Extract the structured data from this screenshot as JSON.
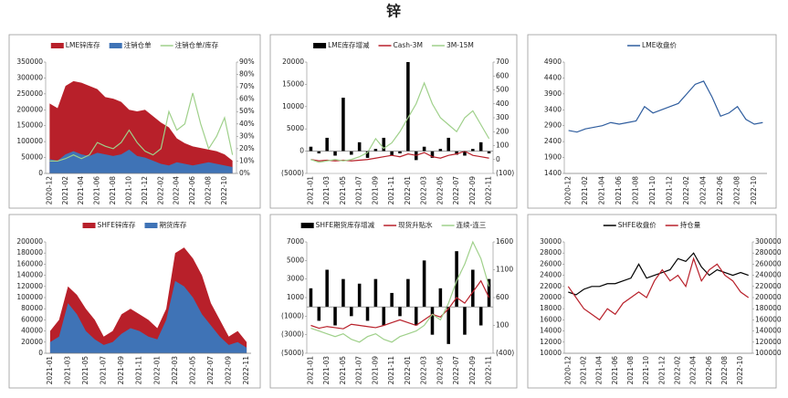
{
  "title": "锌",
  "chart_data": [
    {
      "type": "area",
      "categories": [
        "2020-12",
        null,
        "2021-02",
        null,
        "2021-04",
        null,
        "2021-06",
        null,
        "2021-08",
        null,
        "2021-10",
        null,
        "2021-12",
        null,
        "2022-02",
        null,
        "2022-04",
        null,
        "2022-06",
        null,
        "2022-08",
        null,
        "2022-10",
        null
      ],
      "ylim": [
        0,
        350000
      ],
      "yticks": [
        0,
        50000,
        100000,
        150000,
        200000,
        250000,
        300000,
        350000
      ],
      "y2lim": [
        0,
        90
      ],
      "y2ticks": [
        {
          "value": 0,
          "label": "0%"
        },
        {
          "value": 10,
          "label": "10%"
        },
        {
          "value": 20,
          "label": "20%"
        },
        {
          "value": 30,
          "label": "30%"
        },
        {
          "value": 40,
          "label": "40%"
        },
        {
          "value": 50,
          "label": "50%"
        },
        {
          "value": 60,
          "label": "60%"
        },
        {
          "value": 70,
          "label": "70%"
        },
        {
          "value": 80,
          "label": "80%"
        },
        {
          "value": 90,
          "label": "90%"
        }
      ],
      "series": [
        {
          "name": "LME锌库存",
          "type": "area",
          "color": "#b8202a",
          "values": [
            220000,
            205000,
            275000,
            290000,
            285000,
            275000,
            265000,
            240000,
            235000,
            225000,
            200000,
            195000,
            200000,
            180000,
            160000,
            145000,
            110000,
            95000,
            85000,
            80000,
            75000,
            70000,
            60000,
            40000
          ]
        },
        {
          "name": "注销仓单",
          "type": "area",
          "color": "#3f73b6",
          "values": [
            45000,
            40000,
            60000,
            70000,
            60000,
            55000,
            65000,
            60000,
            55000,
            60000,
            75000,
            55000,
            50000,
            40000,
            30000,
            25000,
            35000,
            30000,
            25000,
            30000,
            35000,
            30000,
            25000,
            20000
          ]
        },
        {
          "name": "注销仓单/库存",
          "type": "line",
          "axis": "y2",
          "color": "#9fd08a",
          "values": [
            10,
            10,
            12,
            15,
            12,
            15,
            25,
            22,
            20,
            25,
            35,
            25,
            18,
            15,
            20,
            50,
            35,
            40,
            65,
            40,
            20,
            30,
            45,
            15
          ]
        }
      ]
    },
    {
      "type": "bar",
      "categories": [
        "2021-01",
        null,
        "2021-03",
        null,
        "2021-05",
        null,
        "2021-07",
        null,
        "2021-09",
        null,
        "2021-11",
        null,
        "2022-01",
        null,
        "2022-03",
        null,
        "2022-05",
        null,
        "2022-07",
        null,
        "2022-09",
        null,
        "2022-11"
      ],
      "ylim": [
        -5000,
        20000
      ],
      "yticks": [
        {
          "value": -5000,
          "label": "(5000)"
        },
        0,
        5000,
        10000,
        15000,
        20000
      ],
      "y2lim": [
        -100,
        700
      ],
      "y2ticks": [
        {
          "value": -100,
          "label": "(100)"
        },
        0,
        100,
        200,
        300,
        400,
        500,
        600,
        700
      ],
      "series": [
        {
          "name": "LME库存增减",
          "type": "bar",
          "color": "#000000",
          "values": [
            1000,
            -500,
            3000,
            -1000,
            12000,
            -800,
            2000,
            -1500,
            500,
            3000,
            -1000,
            -500,
            20000,
            -2000,
            1000,
            -1500,
            500,
            3000,
            -800,
            -1000,
            500,
            2000,
            -500
          ]
        },
        {
          "name": "Cash-3M",
          "type": "line",
          "axis": "y2",
          "color": "#b8202a",
          "values": [
            0,
            -10,
            -5,
            -10,
            -5,
            -10,
            -5,
            0,
            10,
            20,
            30,
            20,
            40,
            30,
            50,
            20,
            10,
            30,
            40,
            60,
            30,
            20,
            10
          ]
        },
        {
          "name": "3M-15M",
          "type": "line",
          "axis": "y2",
          "color": "#9fd08a",
          "values": [
            0,
            -20,
            -10,
            0,
            -10,
            0,
            20,
            50,
            150,
            80,
            120,
            200,
            300,
            400,
            550,
            400,
            300,
            250,
            200,
            300,
            350,
            250,
            150
          ]
        }
      ]
    },
    {
      "type": "line",
      "categories": [
        "2020-12",
        null,
        "2021-02",
        null,
        "2021-04",
        null,
        "2021-06",
        null,
        "2021-08",
        null,
        "2021-10",
        null,
        "2021-12",
        null,
        "2022-02",
        null,
        "2022-04",
        null,
        "2022-06",
        null,
        "2022-08",
        null,
        "2022-10",
        null
      ],
      "ylim": [
        1400,
        4900
      ],
      "yticks": [
        1400,
        1900,
        2400,
        2900,
        3400,
        3900,
        4400,
        4900
      ],
      "series": [
        {
          "name": "LME收盘价",
          "type": "line",
          "color": "#2f5d9e",
          "values": [
            2750,
            2700,
            2800,
            2850,
            2900,
            3000,
            2950,
            3000,
            3050,
            3500,
            3300,
            3400,
            3500,
            3600,
            3900,
            4200,
            4300,
            3800,
            3200,
            3300,
            3500,
            3100,
            2950,
            3000
          ]
        }
      ]
    },
    {
      "type": "area",
      "categories": [
        "2021-01",
        null,
        "2021-03",
        null,
        "2021-05",
        null,
        "2021-07",
        null,
        "2021-09",
        null,
        "2021-11",
        null,
        "2022-01",
        null,
        "2022-03",
        null,
        "2022-05",
        null,
        "2022-07",
        null,
        "2022-09",
        null,
        "2022-11"
      ],
      "ylim": [
        0,
        200000
      ],
      "yticks": [
        0,
        20000,
        40000,
        60000,
        80000,
        100000,
        120000,
        140000,
        160000,
        180000,
        200000
      ],
      "series": [
        {
          "name": "SHFE锌库存",
          "type": "area",
          "color": "#b8202a",
          "values": [
            40000,
            60000,
            120000,
            105000,
            80000,
            60000,
            30000,
            40000,
            70000,
            80000,
            70000,
            60000,
            45000,
            80000,
            180000,
            190000,
            170000,
            140000,
            90000,
            60000,
            30000,
            40000,
            20000
          ]
        },
        {
          "name": "期货库存",
          "type": "area",
          "color": "#3f73b6",
          "values": [
            20000,
            30000,
            90000,
            70000,
            40000,
            25000,
            15000,
            20000,
            35000,
            45000,
            40000,
            30000,
            25000,
            60000,
            130000,
            120000,
            100000,
            70000,
            50000,
            30000,
            15000,
            20000,
            10000
          ]
        }
      ]
    },
    {
      "type": "bar",
      "categories": [
        "2021-01",
        null,
        "2021-03",
        null,
        "2021-05",
        null,
        "2021-07",
        null,
        "2021-09",
        null,
        "2021-11",
        null,
        "2022-01",
        null,
        "2022-03",
        null,
        "2022-05",
        null,
        "2022-07",
        null,
        "2022-09",
        null,
        "2022-11"
      ],
      "ylim": [
        -5000,
        7000
      ],
      "yticks": [
        {
          "value": -5000,
          "label": "(5000)"
        },
        {
          "value": -3000,
          "label": "(3000)"
        },
        {
          "value": -1000,
          "label": "(1000)"
        },
        1000,
        3000,
        5000,
        7000
      ],
      "y2lim": [
        -400,
        1600
      ],
      "y2ticks": [
        {
          "value": -400,
          "label": "(400)"
        },
        100,
        600,
        1100,
        1600
      ],
      "series": [
        {
          "name": "SHFE期货库存增减",
          "type": "bar",
          "color": "#000000",
          "values": [
            2000,
            -1500,
            4000,
            -2000,
            3000,
            -1000,
            2500,
            -1500,
            3000,
            -2000,
            1500,
            -1000,
            3000,
            -2000,
            5000,
            -3000,
            2000,
            -4000,
            6000,
            -3000,
            4000,
            -2000,
            3000
          ]
        },
        {
          "name": "现货升贴水",
          "type": "line",
          "axis": "y2",
          "color": "#b8202a",
          "values": [
            100,
            50,
            80,
            60,
            40,
            120,
            100,
            80,
            60,
            100,
            150,
            200,
            150,
            100,
            200,
            300,
            250,
            400,
            600,
            500,
            700,
            900,
            600
          ]
        },
        {
          "name": "连续-连三",
          "type": "line",
          "axis": "y2",
          "color": "#9fd08a",
          "values": [
            50,
            0,
            -50,
            -100,
            -50,
            -150,
            -200,
            -100,
            -50,
            -150,
            -200,
            -100,
            -50,
            0,
            100,
            300,
            200,
            500,
            900,
            1200,
            1600,
            1300,
            800
          ]
        }
      ]
    },
    {
      "type": "line",
      "categories": [
        "2020-12",
        null,
        "2021-02",
        null,
        "2021-04",
        null,
        "2021-06",
        null,
        "2021-08",
        null,
        "2021-10",
        null,
        "2021-12",
        null,
        "2022-02",
        null,
        "2022-04",
        null,
        "2022-06",
        null,
        "2022-08",
        null,
        "2022-10",
        null
      ],
      "ylim": [
        10000,
        30000
      ],
      "yticks": [
        10000,
        12000,
        14000,
        16000,
        18000,
        20000,
        22000,
        24000,
        26000,
        28000,
        30000
      ],
      "y2lim": [
        100000,
        300000
      ],
      "y2ticks": [
        100000,
        120000,
        140000,
        160000,
        180000,
        200000,
        220000,
        240000,
        260000,
        280000,
        300000
      ],
      "series": [
        {
          "name": "SHFE收盘价",
          "type": "line",
          "color": "#000000",
          "values": [
            21000,
            20500,
            21500,
            22000,
            22000,
            22500,
            22500,
            23000,
            23500,
            26000,
            23500,
            24000,
            24500,
            25000,
            27000,
            26500,
            28000,
            25500,
            24000,
            25000,
            24500,
            24000,
            24500,
            24000
          ]
        },
        {
          "name": "持仓量",
          "type": "line",
          "axis": "y2",
          "color": "#b8202a",
          "values": [
            220000,
            200000,
            180000,
            170000,
            160000,
            180000,
            170000,
            190000,
            200000,
            210000,
            200000,
            230000,
            250000,
            230000,
            240000,
            220000,
            270000,
            230000,
            250000,
            260000,
            240000,
            230000,
            210000,
            200000
          ]
        }
      ]
    }
  ]
}
